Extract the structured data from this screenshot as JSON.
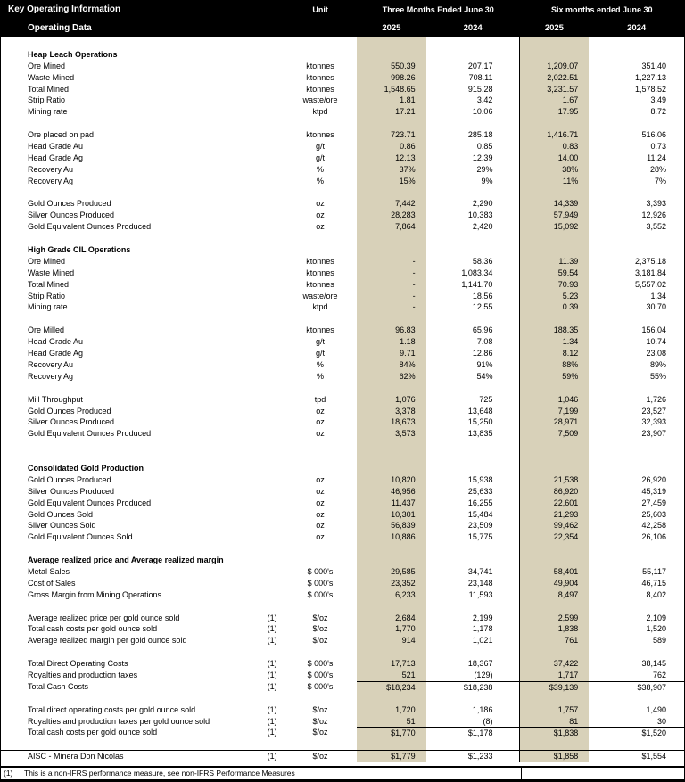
{
  "colors": {
    "header_bg": "#000000",
    "header_text": "#ffffff",
    "highlight_col": "#d8d1b9",
    "text": "#000000"
  },
  "header": {
    "title": "Key Operating Information",
    "subtitle": "Operating Data",
    "unit_label": "Unit",
    "group1": "Three Months Ended June 30",
    "group2": "Six months ended June 30",
    "years": [
      "2025",
      "2024",
      "2025",
      "2024"
    ]
  },
  "table": {
    "rows": [
      {
        "type": "blank"
      },
      {
        "type": "section",
        "label": "Heap Leach Operations"
      },
      {
        "type": "data",
        "label": "Ore Mined",
        "unit": "ktonnes",
        "values": [
          "550.39",
          "207.17",
          "1,209.07",
          "351.40"
        ]
      },
      {
        "type": "data",
        "label": "Waste Mined",
        "unit": "ktonnes",
        "values": [
          "998.26",
          "708.11",
          "2,022.51",
          "1,227.13"
        ]
      },
      {
        "type": "data",
        "label": "Total Mined",
        "unit": "ktonnes",
        "values": [
          "1,548.65",
          "915.28",
          "3,231.57",
          "1,578.52"
        ]
      },
      {
        "type": "data",
        "label": "Strip Ratio",
        "unit": "waste/ore",
        "values": [
          "1.81",
          "3.42",
          "1.67",
          "3.49"
        ]
      },
      {
        "type": "data",
        "label": "Mining rate",
        "unit": "ktpd",
        "values": [
          "17.21",
          "10.06",
          "17.95",
          "8.72"
        ]
      },
      {
        "type": "blank"
      },
      {
        "type": "data",
        "label": "Ore placed on pad",
        "unit": "ktonnes",
        "values": [
          "723.71",
          "285.18",
          "1,416.71",
          "516.06"
        ]
      },
      {
        "type": "data",
        "label": "Head Grade Au",
        "unit": "g/t",
        "values": [
          "0.86",
          "0.85",
          "0.83",
          "0.73"
        ]
      },
      {
        "type": "data",
        "label": "Head Grade Ag",
        "unit": "g/t",
        "values": [
          "12.13",
          "12.39",
          "14.00",
          "11.24"
        ]
      },
      {
        "type": "data",
        "label": "Recovery Au",
        "unit": "%",
        "values": [
          "37%",
          "29%",
          "38%",
          "28%"
        ]
      },
      {
        "type": "data",
        "label": "Recovery Ag",
        "unit": "%",
        "values": [
          "15%",
          "9%",
          "11%",
          "7%"
        ]
      },
      {
        "type": "blank"
      },
      {
        "type": "data",
        "label": "Gold Ounces Produced",
        "unit": "oz",
        "values": [
          "7,442",
          "2,290",
          "14,339",
          "3,393"
        ]
      },
      {
        "type": "data",
        "label": "Silver Ounces Produced",
        "unit": "oz",
        "values": [
          "28,283",
          "10,383",
          "57,949",
          "12,926"
        ]
      },
      {
        "type": "data",
        "label": "Gold Equivalent Ounces Produced",
        "unit": "oz",
        "values": [
          "7,864",
          "2,420",
          "15,092",
          "3,552"
        ]
      },
      {
        "type": "blank"
      },
      {
        "type": "section",
        "label": "High Grade CIL Operations"
      },
      {
        "type": "data",
        "label": "Ore Mined",
        "unit": "ktonnes",
        "values": [
          "-",
          "58.36",
          "11.39",
          "2,375.18"
        ]
      },
      {
        "type": "data",
        "label": "Waste Mined",
        "unit": "ktonnes",
        "values": [
          "-",
          "1,083.34",
          "59.54",
          "3,181.84"
        ]
      },
      {
        "type": "data",
        "label": "Total Mined",
        "unit": "ktonnes",
        "values": [
          "-",
          "1,141.70",
          "70.93",
          "5,557.02"
        ]
      },
      {
        "type": "data",
        "label": "Strip Ratio",
        "unit": "waste/ore",
        "values": [
          "-",
          "18.56",
          "5.23",
          "1.34"
        ]
      },
      {
        "type": "data",
        "label": "Mining rate",
        "unit": "ktpd",
        "values": [
          "-",
          "12.55",
          "0.39",
          "30.70"
        ]
      },
      {
        "type": "blank"
      },
      {
        "type": "data",
        "label": "Ore Milled",
        "unit": "ktonnes",
        "values": [
          "96.83",
          "65.96",
          "188.35",
          "156.04"
        ]
      },
      {
        "type": "data",
        "label": "Head Grade Au",
        "unit": "g/t",
        "values": [
          "1.18",
          "7.08",
          "1.34",
          "10.74"
        ]
      },
      {
        "type": "data",
        "label": "Head Grade Ag",
        "unit": "g/t",
        "values": [
          "9.71",
          "12.86",
          "8.12",
          "23.08"
        ]
      },
      {
        "type": "data",
        "label": "Recovery Au",
        "unit": "%",
        "values": [
          "84%",
          "91%",
          "88%",
          "89%"
        ]
      },
      {
        "type": "data",
        "label": "Recovery Ag",
        "unit": "%",
        "values": [
          "62%",
          "54%",
          "59%",
          "55%"
        ]
      },
      {
        "type": "blank"
      },
      {
        "type": "data",
        "label": "Mill Throughput",
        "unit": "tpd",
        "values": [
          "1,076",
          "725",
          "1,046",
          "1,726"
        ]
      },
      {
        "type": "data",
        "label": "Gold Ounces Produced",
        "unit": "oz",
        "values": [
          "3,378",
          "13,648",
          "7,199",
          "23,527"
        ]
      },
      {
        "type": "data",
        "label": "Silver Ounces Produced",
        "unit": "oz",
        "values": [
          "18,673",
          "15,250",
          "28,971",
          "32,393"
        ]
      },
      {
        "type": "data",
        "label": "Gold Equivalent Ounces Produced",
        "unit": "oz",
        "values": [
          "3,573",
          "13,835",
          "7,509",
          "23,907"
        ]
      },
      {
        "type": "blank"
      },
      {
        "type": "blank"
      },
      {
        "type": "section",
        "label": "Consolidated Gold Production"
      },
      {
        "type": "data",
        "label": "Gold Ounces Produced",
        "unit": "oz",
        "values": [
          "10,820",
          "15,938",
          "21,538",
          "26,920"
        ]
      },
      {
        "type": "data",
        "label": "Silver Ounces Produced",
        "unit": "oz",
        "values": [
          "46,956",
          "25,633",
          "86,920",
          "45,319"
        ]
      },
      {
        "type": "data",
        "label": "Gold Equivalent Ounces Produced",
        "unit": "oz",
        "values": [
          "11,437",
          "16,255",
          "22,601",
          "27,459"
        ]
      },
      {
        "type": "data",
        "label": "Gold Ounces Sold",
        "unit": "oz",
        "values": [
          "10,301",
          "15,484",
          "21,293",
          "25,603"
        ]
      },
      {
        "type": "data",
        "label": "Silver Ounces Sold",
        "unit": "oz",
        "values": [
          "56,839",
          "23,509",
          "99,462",
          "42,258"
        ]
      },
      {
        "type": "data",
        "label": "Gold Equivalent Ounces Sold",
        "unit": "oz",
        "values": [
          "10,886",
          "15,775",
          "22,354",
          "26,106"
        ]
      },
      {
        "type": "blank"
      },
      {
        "type": "section",
        "label": "Average realized price and Average realized margin"
      },
      {
        "type": "data",
        "label": "Metal Sales",
        "unit": "$ 000's",
        "values": [
          "29,585",
          "34,741",
          "58,401",
          "55,117"
        ]
      },
      {
        "type": "data",
        "label": "Cost of Sales",
        "unit": "$ 000's",
        "values": [
          "23,352",
          "23,148",
          "49,904",
          "46,715"
        ]
      },
      {
        "type": "data",
        "label": "Gross Margin from Mining Operations",
        "unit": "$ 000's",
        "values": [
          "6,233",
          "11,593",
          "8,497",
          "8,402"
        ]
      },
      {
        "type": "blank"
      },
      {
        "type": "data",
        "label": "Average realized price per gold ounce sold",
        "note": "(1)",
        "unit": "$/oz",
        "values": [
          "2,684",
          "2,199",
          "2,599",
          "2,109"
        ]
      },
      {
        "type": "data",
        "label": "Total cash costs per gold ounce sold",
        "note": "(1)",
        "unit": "$/oz",
        "values": [
          "1,770",
          "1,178",
          "1,838",
          "1,520"
        ]
      },
      {
        "type": "data",
        "label": "Average realized margin per gold ounce sold",
        "note": "(1)",
        "unit": "$/oz",
        "values": [
          "914",
          "1,021",
          "761",
          "589"
        ]
      },
      {
        "type": "blank"
      },
      {
        "type": "data",
        "label": "Total Direct Operating Costs",
        "note": "(1)",
        "unit": "$ 000's",
        "values": [
          "17,713",
          "18,367",
          "37,422",
          "38,145"
        ]
      },
      {
        "type": "data",
        "label": "Royalties and production taxes",
        "note": "(1)",
        "unit": "$ 000's",
        "values": [
          "521",
          "(129)",
          "1,717",
          "762"
        ]
      },
      {
        "type": "data",
        "label": "Total Cash Costs",
        "note": "(1)",
        "unit": "$ 000's",
        "topline": true,
        "values": [
          "$18,234",
          "$18,238",
          "$39,139",
          "$38,907"
        ]
      },
      {
        "type": "blank"
      },
      {
        "type": "data",
        "label": "Total direct operating costs per gold ounce sold",
        "note": "(1)",
        "unit": "$/oz",
        "values": [
          "1,720",
          "1,186",
          "1,757",
          "1,490"
        ]
      },
      {
        "type": "data",
        "label": "Royalties and production taxes per gold ounce sold",
        "note": "(1)",
        "unit": "$/oz",
        "values": [
          "51",
          "(8)",
          "81",
          "30"
        ]
      },
      {
        "type": "data",
        "label": "Total cash costs per gold ounce sold",
        "note": "(1)",
        "unit": "$/oz",
        "topline": true,
        "values": [
          "$1,770",
          "$1,178",
          "$1,838",
          "$1,520"
        ]
      },
      {
        "type": "blank"
      },
      {
        "type": "data",
        "label": "AISC - Minera Don Nicolas",
        "note": "(1)",
        "unit": "$/oz",
        "rule_top": true,
        "values": [
          "$1,779",
          "$1,233",
          "$1,858",
          "$1,554"
        ]
      }
    ]
  },
  "footnote": {
    "marker": "(1)",
    "text": "This is a non-IFRS performance measure, see non-IFRS Performance Measures"
  }
}
